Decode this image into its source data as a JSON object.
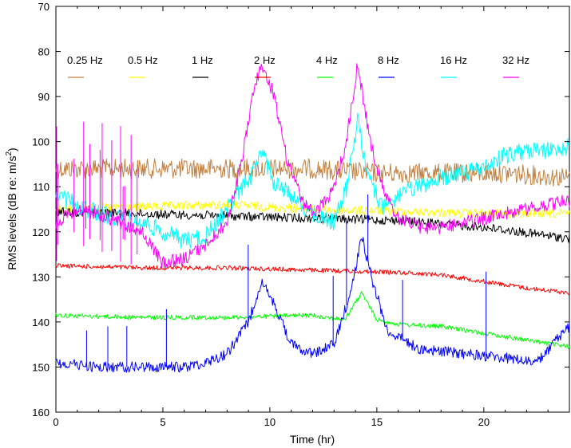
{
  "chart_data": {
    "type": "line",
    "title": "",
    "xlabel": "Time (hr)",
    "ylabel_main": "RMS levels (dB re: m/s",
    "ylabel_sup": "2",
    "ylabel_end": ")",
    "xlim": [
      0,
      24
    ],
    "ylim": [
      70,
      160
    ],
    "y_inverted": true,
    "xticks": [
      0,
      5,
      10,
      15,
      20
    ],
    "yticks": [
      70,
      80,
      90,
      100,
      110,
      120,
      130,
      140,
      150,
      160
    ],
    "grid": false,
    "legend_position": "top, horizontal row inside plot",
    "series": [
      {
        "name": "0.25 Hz",
        "color": "#c08040",
        "noise": 2.2,
        "spikes": 0,
        "x": [
          0,
          3,
          6,
          9,
          12,
          15,
          18,
          21,
          24
        ],
        "y": [
          106,
          106,
          106,
          106,
          106,
          107,
          107,
          107,
          108
        ]
      },
      {
        "name": "0.5 Hz",
        "color": "#ffff00",
        "noise": 1.0,
        "spikes": 0,
        "x": [
          0,
          4,
          8,
          12,
          16,
          20,
          24
        ],
        "y": [
          115,
          114.5,
          114,
          115,
          115.5,
          116,
          116
        ]
      },
      {
        "name": "1 Hz",
        "color": "#000000",
        "noise": 1.0,
        "spikes": 0,
        "x": [
          0,
          4,
          8,
          12,
          16,
          20,
          24
        ],
        "y": [
          115.5,
          116,
          116.5,
          117,
          117.5,
          119,
          121.5
        ]
      },
      {
        "name": "2 Hz",
        "color": "#ff0000",
        "noise": 0.5,
        "spikes": 0,
        "x": [
          0,
          4,
          8,
          12,
          16,
          18,
          20,
          22,
          24
        ],
        "y": [
          127.5,
          128,
          128,
          128.5,
          129,
          129.5,
          131,
          132.5,
          133.5
        ]
      },
      {
        "name": "4 Hz",
        "color": "#00ff00",
        "noise": 0.5,
        "spikes": 0,
        "x": [
          0,
          4,
          8,
          12,
          13.5,
          14.3,
          15,
          16,
          18,
          20,
          22,
          24
        ],
        "y": [
          138.5,
          139,
          139,
          138.5,
          139.5,
          133.5,
          139.5,
          140.5,
          141,
          142.5,
          144,
          145.5
        ]
      },
      {
        "name": "8 Hz",
        "color": "#0000ff",
        "noise": 1.2,
        "spikes": 10,
        "x": [
          0,
          2,
          4,
          6,
          7,
          8,
          9,
          9.6,
          10.3,
          11,
          12,
          13,
          13.8,
          14.3,
          14.8,
          15.5,
          17,
          19,
          21,
          22.5,
          23.4,
          24
        ],
        "y": [
          149,
          150,
          150,
          150,
          149,
          147,
          140,
          131,
          137,
          145,
          147,
          145,
          133,
          121,
          131,
          142,
          146,
          147,
          148,
          149,
          144,
          141
        ]
      },
      {
        "name": "16 Hz",
        "color": "#00ffff",
        "noise": 2.0,
        "spikes": 0,
        "x": [
          0,
          1,
          2,
          3,
          4,
          5,
          6,
          7,
          8,
          9.2,
          9.6,
          10.2,
          11,
          12,
          13,
          13.6,
          14.1,
          14.6,
          15.3,
          16,
          17,
          18,
          19,
          20,
          21,
          22,
          23,
          24
        ],
        "y": [
          112,
          114,
          116,
          117,
          118,
          120,
          122,
          121,
          115,
          107,
          102,
          109,
          112,
          116,
          118,
          110,
          95,
          108,
          115,
          112,
          110,
          108,
          107,
          106,
          103,
          102,
          102,
          101
        ]
      },
      {
        "name": "32 Hz",
        "color": "#ff00ff",
        "noise": 1.5,
        "spikes": 14,
        "x": [
          0,
          1,
          2,
          3,
          4,
          5,
          6,
          7,
          8,
          8.7,
          9.3,
          9.7,
          10.2,
          10.8,
          11.5,
          12,
          12.8,
          13.5,
          14.1,
          14.7,
          15.3,
          16,
          17,
          18,
          19,
          20,
          21,
          22,
          23,
          24
        ],
        "y": [
          118,
          115,
          116,
          118,
          120,
          127,
          126,
          123,
          118,
          104,
          87,
          83,
          90,
          104,
          113,
          116,
          112,
          102,
          83,
          100,
          111,
          117,
          119,
          119,
          118,
          117,
          116,
          115,
          114,
          113
        ]
      }
    ]
  }
}
